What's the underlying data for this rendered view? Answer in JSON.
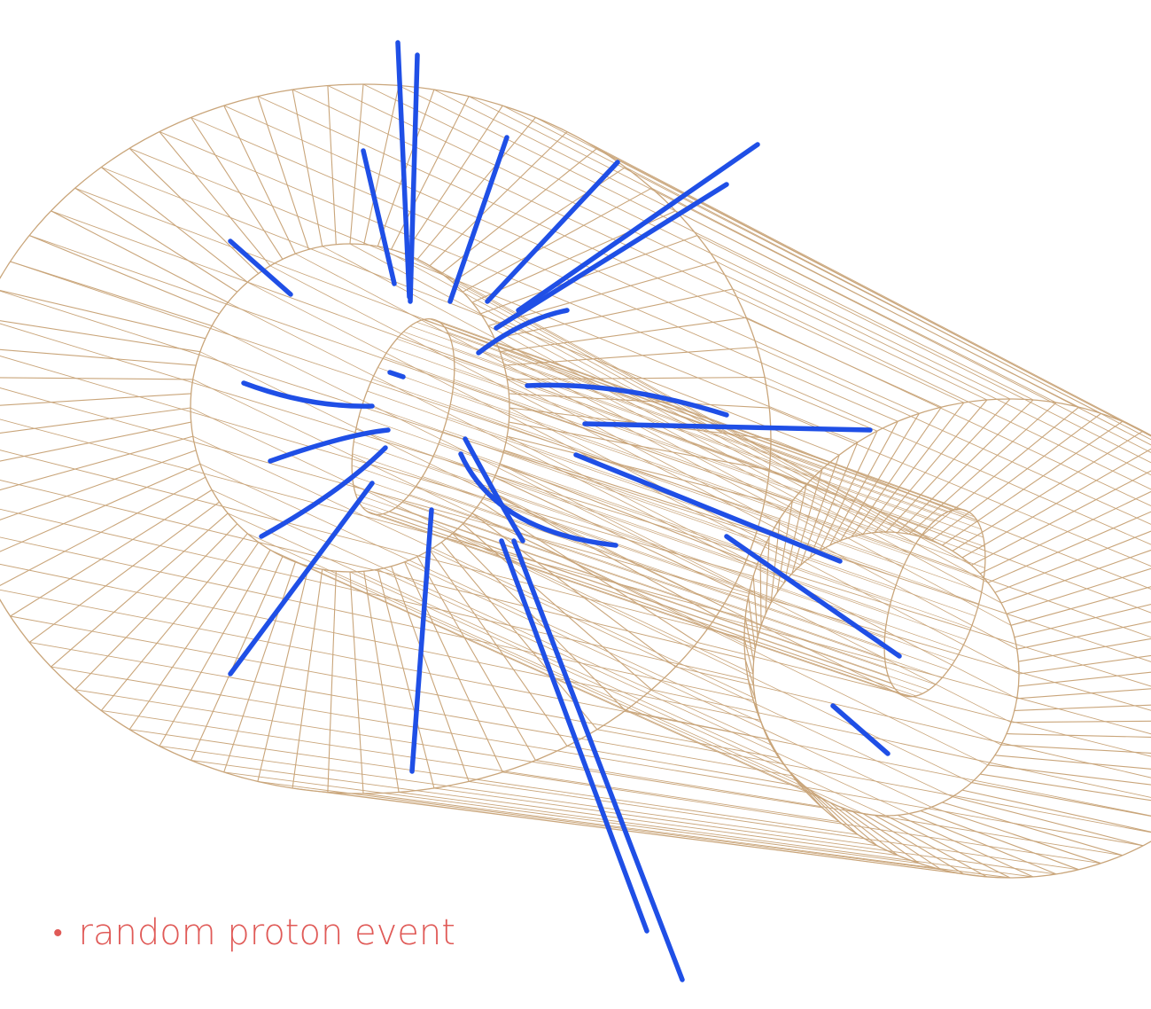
{
  "caption": {
    "bullet": "•",
    "text": "random proton event"
  },
  "colors": {
    "background": "#ffffff",
    "detector_wire": "#c9a57a",
    "track": "#1f4fe6",
    "caption": "#e05a57"
  },
  "detector": {
    "outer_cylinder_spokes": 72,
    "outer_cylinder_axial_lines": 72,
    "inner_cylinder_axial_lines": 48,
    "ring_count": 4
  },
  "tracks_count": 24
}
